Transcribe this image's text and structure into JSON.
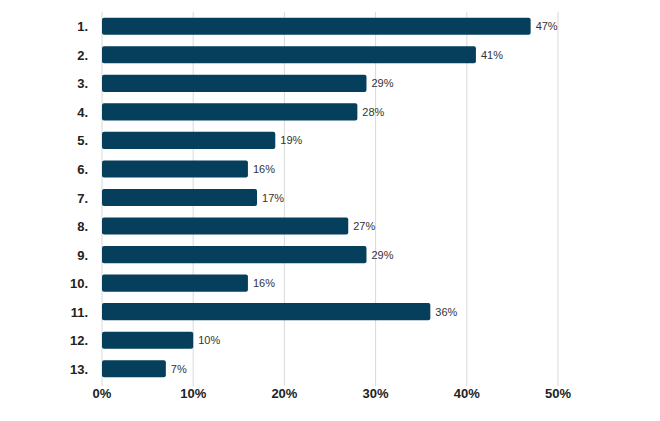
{
  "chart_data": {
    "type": "bar",
    "orientation": "horizontal",
    "categories": [
      "1.",
      "2.",
      "3.",
      "4.",
      "5.",
      "6.",
      "7.",
      "8.",
      "9.",
      "10.",
      "11.",
      "12.",
      "13."
    ],
    "values": [
      47,
      41,
      29,
      28,
      19,
      16,
      17,
      27,
      29,
      16,
      36,
      10,
      7
    ],
    "value_labels": [
      "47%",
      "41%",
      "29%",
      "28%",
      "19%",
      "16%",
      "17%",
      "27%",
      "29%",
      "16%",
      "36%",
      "10%",
      "7%"
    ],
    "color": "#053f5c",
    "xlim": [
      0,
      50
    ],
    "xticks": [
      {
        "value": 0,
        "label": "0%"
      },
      {
        "value": 10,
        "label": "10%"
      },
      {
        "value": 20,
        "label": "20%"
      },
      {
        "value": 30,
        "label": "30%"
      },
      {
        "value": 40,
        "label": "40%"
      },
      {
        "value": 50,
        "label": "50%"
      }
    ],
    "grid": true,
    "data_labels": true
  }
}
